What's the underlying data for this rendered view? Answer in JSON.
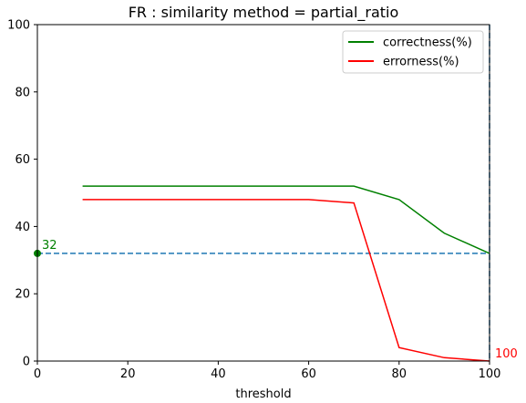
{
  "chart_data": {
    "type": "line",
    "title": "FR : similarity method = partial_ratio",
    "xlabel": "threshold",
    "ylabel": "",
    "xlim": [
      0,
      100
    ],
    "ylim": [
      0,
      100
    ],
    "xticks": [
      0,
      20,
      40,
      60,
      80,
      100
    ],
    "yticks": [
      0,
      20,
      40,
      60,
      80,
      100
    ],
    "grid": false,
    "legend_position": "top-right",
    "series": [
      {
        "name": "correctness(%)",
        "color": "#008000",
        "x": [
          10,
          20,
          30,
          40,
          50,
          60,
          70,
          80,
          90,
          100
        ],
        "y": [
          52,
          52,
          52,
          52,
          52,
          52,
          52,
          48,
          38,
          32
        ]
      },
      {
        "name": "errorness(%)",
        "color": "#ff0000",
        "x": [
          10,
          20,
          30,
          40,
          50,
          60,
          70,
          80,
          90,
          100
        ],
        "y": [
          48,
          48,
          48,
          48,
          48,
          48,
          47,
          4,
          1,
          0
        ]
      }
    ],
    "reference_lines": {
      "horizontal": {
        "y": 32,
        "color": "#1f77b4",
        "style": "dashed"
      },
      "vertical": {
        "x": 100,
        "color": "#1f77b4",
        "style": "dashed"
      }
    },
    "annotations": [
      {
        "text": "32",
        "x": 0,
        "y": 32,
        "color": "#008000",
        "marker": true
      },
      {
        "text": "100",
        "x": 100,
        "y": 0,
        "color": "#ff0000",
        "marker": false
      }
    ]
  }
}
